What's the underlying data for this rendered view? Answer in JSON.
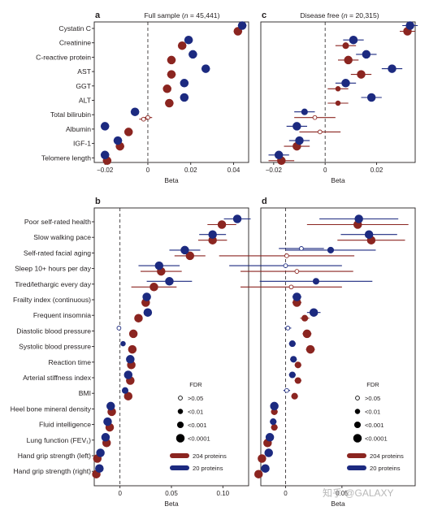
{
  "colors": {
    "proteins_204": "#8b2520",
    "proteins_20": "#1c2a80"
  },
  "watermark": "知乎 @GALAXY",
  "legend": {
    "fdr_title": "FDR",
    "fdr_levels": [
      ">0.05",
      "<0.01",
      "<0.001",
      "<0.0001"
    ],
    "series": [
      "204 proteins",
      "20 proteins"
    ]
  },
  "chart_data": [
    {
      "id": "a",
      "type": "scatter",
      "letter": "a",
      "title_prefix": "Full sample (",
      "title_n": "n",
      "title_suffix": " = 45,441)",
      "xlabel": "Beta",
      "xlim": [
        -0.025,
        0.047
      ],
      "xticks": [
        -0.02,
        0,
        0.02,
        0.04
      ],
      "xticklabels": [
        "−0.02",
        "0",
        "0.02",
        "0.04"
      ],
      "categories": [
        "Cystatin C",
        "Creatinine",
        "C-reactive protein",
        "AST",
        "GGT",
        "ALT",
        "Total bilirubin",
        "Albumin",
        "IGF-1",
        "Telomere length"
      ],
      "series": [
        {
          "name": "204 proteins",
          "color": "#8b2520",
          "values": [
            0.042,
            0.016,
            0.011,
            0.011,
            0.009,
            0.01,
            0.0,
            -0.009,
            -0.013,
            -0.019
          ],
          "ci": [
            0.002,
            0.002,
            0.002,
            0.002,
            0.002,
            0.002,
            0.002,
            0.002,
            0.002,
            0.002
          ],
          "fdr": [
            3,
            3,
            3,
            3,
            3,
            3,
            0,
            3,
            3,
            3
          ]
        },
        {
          "name": "20 proteins",
          "color": "#1c2a80",
          "values": [
            0.044,
            0.019,
            0.021,
            0.027,
            0.017,
            0.017,
            -0.006,
            -0.02,
            -0.014,
            -0.02
          ],
          "ci": [
            0.002,
            0.002,
            0.002,
            0.002,
            0.002,
            0.002,
            0.002,
            0.002,
            0.002,
            0.002
          ],
          "fdr": [
            3,
            3,
            3,
            3,
            3,
            3,
            3,
            3,
            3,
            3
          ]
        },
        {
          "name": "204 proteins (secondary)",
          "color": "#8b2520",
          "values": [
            null,
            null,
            null,
            null,
            null,
            null,
            -0.002,
            null,
            null,
            null
          ],
          "ci": [
            null,
            null,
            null,
            null,
            null,
            null,
            0.002,
            null,
            null,
            null
          ],
          "fdr": [
            null,
            null,
            null,
            null,
            null,
            null,
            0,
            null,
            null,
            null
          ]
        }
      ]
    },
    {
      "id": "c",
      "type": "scatter",
      "letter": "c",
      "title_prefix": "Disease free (",
      "title_n": "n",
      "title_suffix": " = 20,315)",
      "xlabel": "Beta",
      "xlim": [
        -0.025,
        0.035
      ],
      "xticks": [
        -0.02,
        0,
        0.02
      ],
      "xticklabels": [
        "−0.02",
        "0",
        "0.02"
      ],
      "categories": [
        "Cystatin C",
        "Creatinine",
        "C-reactive protein",
        "AST",
        "GGT",
        "ALT",
        "Total bilirubin",
        "Albumin",
        "IGF-1",
        "Telomere length"
      ],
      "series": [
        {
          "name": "204 proteins",
          "color": "#8b2520",
          "values": [
            0.032,
            0.008,
            0.009,
            0.014,
            0.005,
            0.005,
            -0.004,
            -0.002,
            -0.011,
            -0.017
          ],
          "ci": [
            0.003,
            0.004,
            0.004,
            0.004,
            0.004,
            0.004,
            0.008,
            0.008,
            0.005,
            0.005
          ],
          "fdr": [
            3,
            2,
            3,
            3,
            1,
            1,
            0,
            0,
            3,
            3
          ]
        },
        {
          "name": "20 proteins",
          "color": "#1c2a80",
          "values": [
            0.033,
            0.011,
            0.016,
            0.026,
            0.008,
            0.018,
            -0.008,
            -0.011,
            -0.01,
            -0.018
          ],
          "ci": [
            0.003,
            0.004,
            0.004,
            0.004,
            0.004,
            0.004,
            0.004,
            0.004,
            0.004,
            0.004
          ],
          "fdr": [
            3,
            3,
            3,
            3,
            3,
            3,
            2,
            3,
            3,
            3
          ]
        }
      ]
    },
    {
      "id": "b",
      "type": "scatter",
      "letter": "b",
      "title_prefix": "",
      "title_n": "",
      "title_suffix": "",
      "xlabel": "Beta",
      "xlim": [
        -0.025,
        0.125
      ],
      "xticks": [
        0,
        0.05,
        0.1
      ],
      "xticklabels": [
        "0",
        "0.05",
        "0.10"
      ],
      "categories": [
        "Poor self-rated health",
        "Slow walking pace",
        "Self-rated facial aging",
        "Sleep 10+ hours per day",
        "Tired/lethargic every day",
        "Frailty index (continuous)",
        "Frequent insomnia",
        "Diastolic blood pressure",
        "Systolic blood pressure",
        "Reaction time",
        "Arterial stiffness index",
        "BMI",
        "Heel bone mineral density",
        "Fluid intelligence",
        "Lung function (FEV₁)",
        "Hand grip strength (left)",
        "Hand grip strength (right)"
      ],
      "series": [
        {
          "name": "204 proteins",
          "color": "#8b2520",
          "values": [
            0.099,
            0.09,
            0.068,
            0.04,
            0.033,
            0.025,
            0.018,
            0.013,
            0.012,
            0.011,
            0.01,
            0.008,
            -0.008,
            -0.01,
            -0.013,
            -0.022,
            -0.023
          ],
          "ci": [
            0.014,
            0.014,
            0.015,
            0.02,
            0.022,
            0.004,
            0.004,
            0.002,
            0.002,
            0.002,
            0.002,
            0.002,
            0.002,
            0.002,
            0.002,
            0.002,
            0.002
          ],
          "fdr": [
            3,
            3,
            3,
            3,
            3,
            3,
            3,
            3,
            3,
            3,
            3,
            3,
            3,
            3,
            3,
            3,
            3
          ]
        },
        {
          "name": "20 proteins",
          "color": "#1c2a80",
          "values": [
            0.114,
            0.09,
            0.063,
            0.038,
            0.048,
            0.026,
            0.027,
            -0.001,
            0.003,
            0.01,
            0.008,
            0.005,
            -0.009,
            -0.012,
            -0.014,
            -0.019,
            -0.02
          ],
          "ci": [
            0.013,
            0.013,
            0.015,
            0.02,
            0.022,
            0.004,
            0.004,
            0.002,
            0.002,
            0.002,
            0.002,
            0.002,
            0.002,
            0.002,
            0.002,
            0.002,
            0.002
          ],
          "fdr": [
            3,
            3,
            3,
            3,
            3,
            3,
            3,
            0,
            1,
            3,
            3,
            2,
            3,
            3,
            3,
            3,
            3
          ]
        }
      ]
    },
    {
      "id": "d",
      "type": "scatter",
      "letter": "d",
      "title_prefix": "",
      "title_n": "",
      "title_suffix": "",
      "xlabel": "Beta",
      "xlim": [
        -0.022,
        0.115
      ],
      "xticks": [
        0,
        0.05
      ],
      "xticklabels": [
        "0",
        "0.05"
      ],
      "categories": [
        "Poor self-rated health",
        "Slow walking pace",
        "Self-rated facial aging",
        "Sleep 10+ hours per day",
        "Tired/lethargic every day",
        "Frailty index (continuous)",
        "Frequent insomnia",
        "Diastolic blood pressure",
        "Systolic blood pressure",
        "Reaction time",
        "Arterial stiffness index",
        "BMI",
        "Heel bone mineral density",
        "Fluid intelligence",
        "Lung function (FEV₁)",
        "Hand grip strength (left)",
        "Hand grip strength (right)"
      ],
      "series": [
        {
          "name": "204 proteins",
          "color": "#8b2520",
          "values": [
            0.064,
            0.076,
            0.001,
            0.01,
            0.005,
            0.01,
            0.017,
            0.019,
            0.022,
            0.011,
            0.011,
            0.008,
            -0.01,
            -0.01,
            -0.016,
            -0.021,
            -0.024
          ],
          "ci": [
            0.045,
            0.03,
            0.06,
            0.05,
            0.045,
            0.004,
            0.004,
            0.004,
            0.004,
            0.003,
            0.003,
            0.003,
            0.003,
            0.003,
            0.003,
            0.003,
            0.003
          ],
          "fdr": [
            3,
            3,
            0,
            0,
            0,
            3,
            2,
            3,
            3,
            2,
            2,
            2,
            2,
            2,
            3,
            3,
            3
          ]
        },
        {
          "name": "20 proteins",
          "color": "#1c2a80",
          "values": [
            0.065,
            0.074,
            0.04,
            0.0,
            0.027,
            0.01,
            0.025,
            0.002,
            0.006,
            0.007,
            0.006,
            0.001,
            -0.01,
            -0.011,
            -0.014,
            -0.015,
            -0.018
          ],
          "ci": [
            0.035,
            0.025,
            0.04,
            0.05,
            0.05,
            0.004,
            0.006,
            0.003,
            0.003,
            0.003,
            0.003,
            0.003,
            0.003,
            0.003,
            0.003,
            0.003,
            0.003
          ],
          "fdr": [
            3,
            3,
            2,
            0,
            2,
            3,
            3,
            0,
            2,
            2,
            2,
            0,
            3,
            2,
            3,
            3,
            3
          ]
        },
        {
          "name": "20 proteins (secondary)",
          "color": "#1c2a80",
          "values": [
            null,
            null,
            0.014,
            null,
            null,
            null,
            null,
            null,
            null,
            null,
            null,
            null,
            null,
            null,
            null,
            null,
            null
          ],
          "ci": [
            null,
            null,
            0.02,
            null,
            null,
            null,
            null,
            null,
            null,
            null,
            null,
            null,
            null,
            null,
            null,
            null,
            null
          ],
          "fdr": [
            null,
            null,
            0,
            null,
            null,
            null,
            null,
            null,
            null,
            null,
            null,
            null,
            null,
            null,
            null,
            null,
            null
          ]
        }
      ]
    }
  ]
}
